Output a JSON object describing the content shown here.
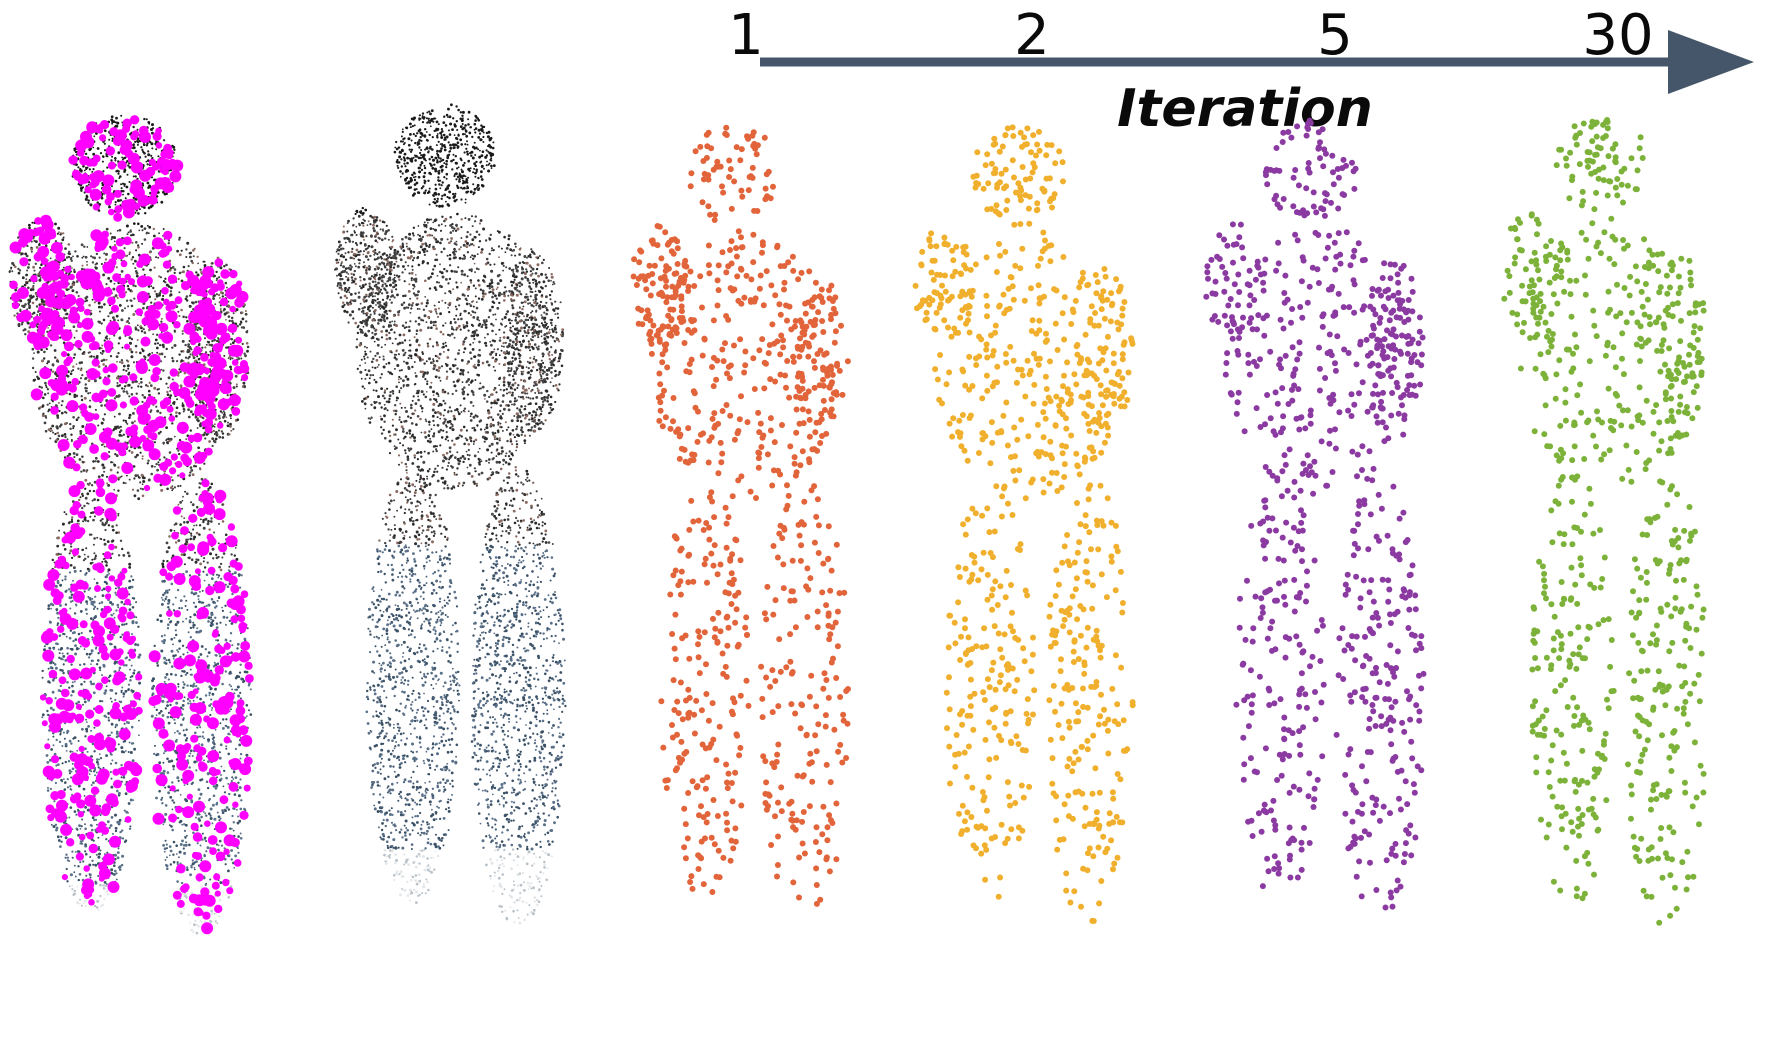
{
  "axis": {
    "title": "Iteration",
    "ticks": [
      {
        "label": "1"
      },
      {
        "label": "2"
      },
      {
        "label": "5"
      },
      {
        "label": "30"
      }
    ],
    "arrow_color": "#46566a"
  },
  "panels": [
    {
      "id": "input-with-keypoints",
      "kind": "photo-cloud",
      "overlay_color": "#ff00ff"
    },
    {
      "id": "input-cloud",
      "kind": "photo-cloud"
    },
    {
      "id": "iteration-1",
      "kind": "sampled-points",
      "color": "#e2643a",
      "iteration": "1"
    },
    {
      "id": "iteration-2",
      "kind": "sampled-points",
      "color": "#f0b02e",
      "iteration": "2"
    },
    {
      "id": "iteration-5",
      "kind": "sampled-points",
      "color": "#8b3aa2",
      "iteration": "5"
    },
    {
      "id": "iteration-30",
      "kind": "sampled-points",
      "color": "#7db23a",
      "iteration": "30"
    }
  ]
}
